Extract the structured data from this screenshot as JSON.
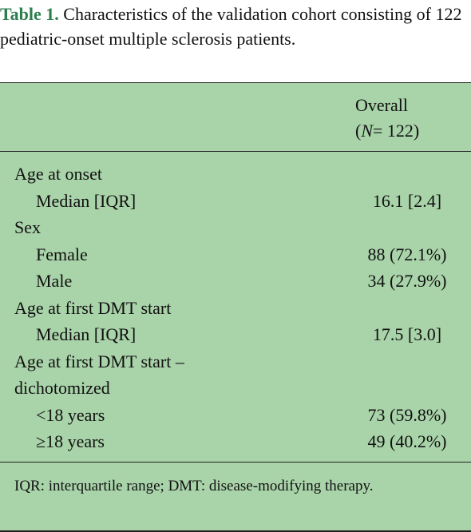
{
  "caption": {
    "label": "Table 1.",
    "text": "Characteristics of the validation cohort consisting of 122 pediatric-onset multiple sclerosis patients."
  },
  "table": {
    "header": {
      "line1": "Overall",
      "line2_prefix": "(",
      "line2_var": "N",
      "line2_suffix": "= 122)"
    },
    "groups": [
      {
        "label": "Age at onset",
        "rows": [
          [
            "Median [IQR]",
            "16.1 [2.4]"
          ]
        ]
      },
      {
        "label": "Sex",
        "rows": [
          [
            "Female",
            "88 (72.1%)"
          ],
          [
            "Male",
            "34 (27.9%)"
          ]
        ]
      },
      {
        "label": "Age at first DMT start",
        "rows": [
          [
            "Median [IQR]",
            "17.5 [3.0]"
          ]
        ]
      },
      {
        "label": "Age at first DMT start – dichotomized",
        "rows": [
          [
            "<18 years",
            "73 (59.8%)"
          ],
          [
            "≥18 years",
            "49 (40.2%)"
          ]
        ]
      }
    ]
  },
  "footnote": "IQR: interquartile range; DMT: disease-modifying therapy."
}
